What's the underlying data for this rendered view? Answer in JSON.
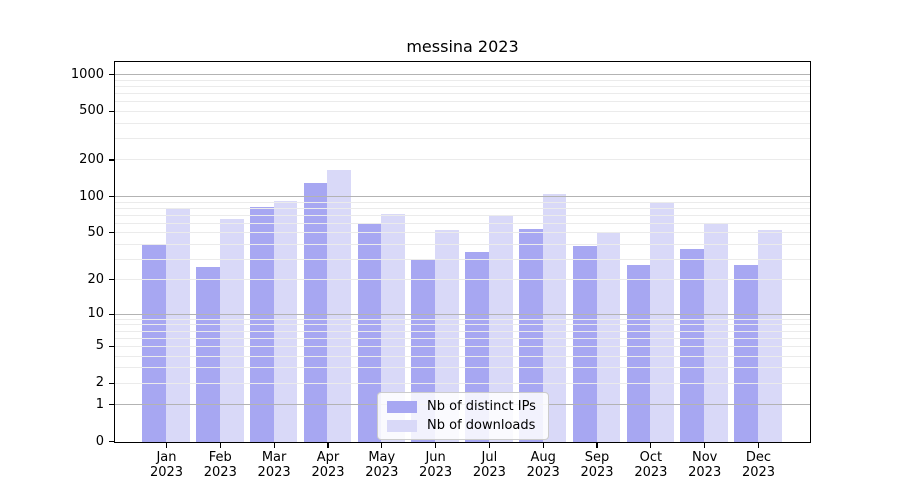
{
  "chart_data": {
    "type": "bar",
    "title": "messina 2023",
    "categories": [
      "Jan 2023",
      "Feb 2023",
      "Mar 2023",
      "Apr 2023",
      "May 2023",
      "Jun 2023",
      "Jul 2023",
      "Aug 2023",
      "Sep 2023",
      "Oct 2023",
      "Nov 2023",
      "Dec 2023"
    ],
    "months": [
      "Jan",
      "Feb",
      "Mar",
      "Apr",
      "May",
      "Jun",
      "Jul",
      "Aug",
      "Sep",
      "Oct",
      "Nov",
      "Dec"
    ],
    "year": "2023",
    "series": [
      {
        "name": "Nb of distinct IPs",
        "color": "#a7a7f2",
        "values": [
          40,
          26,
          82,
          130,
          60,
          30,
          35,
          54,
          39,
          27,
          37,
          27
        ]
      },
      {
        "name": "Nb of downloads",
        "color": "#d9d9f8",
        "values": [
          79,
          66,
          93,
          167,
          73,
          53,
          70,
          105,
          50,
          90,
          60,
          53
        ]
      }
    ],
    "legend": {
      "position": "lower-center",
      "entries": [
        "Nb of distinct IPs",
        "Nb of downloads"
      ]
    },
    "y_axis": {
      "scale": "log10(1+x)",
      "tick_labels": [
        "1000",
        "500",
        "200",
        "100",
        "50",
        "20",
        "10",
        "5",
        "2",
        "1",
        "0"
      ],
      "tick_values": [
        1000,
        500,
        200,
        100,
        50,
        20,
        10,
        5,
        2,
        1,
        0
      ],
      "major_gridlines": [
        1,
        10,
        100,
        1000
      ],
      "minor_gridlines": [
        2,
        3,
        4,
        5,
        6,
        7,
        8,
        9,
        20,
        30,
        40,
        50,
        60,
        70,
        80,
        90,
        200,
        300,
        400,
        500,
        600,
        700,
        800,
        900
      ],
      "ylim": [
        0,
        1250
      ],
      "range_top_log": 3.1,
      "grid_over_bars": true
    },
    "xlabel": "",
    "ylabel": "",
    "colors": {
      "major_grid": "#b3b3b3",
      "minor_grid": "#ebebeb",
      "spine": "#000000",
      "text": "#000000",
      "background": "#ffffff",
      "legend_bg": "rgba(255,255,255,0.85)",
      "legend_border": "#cccccc"
    }
  }
}
